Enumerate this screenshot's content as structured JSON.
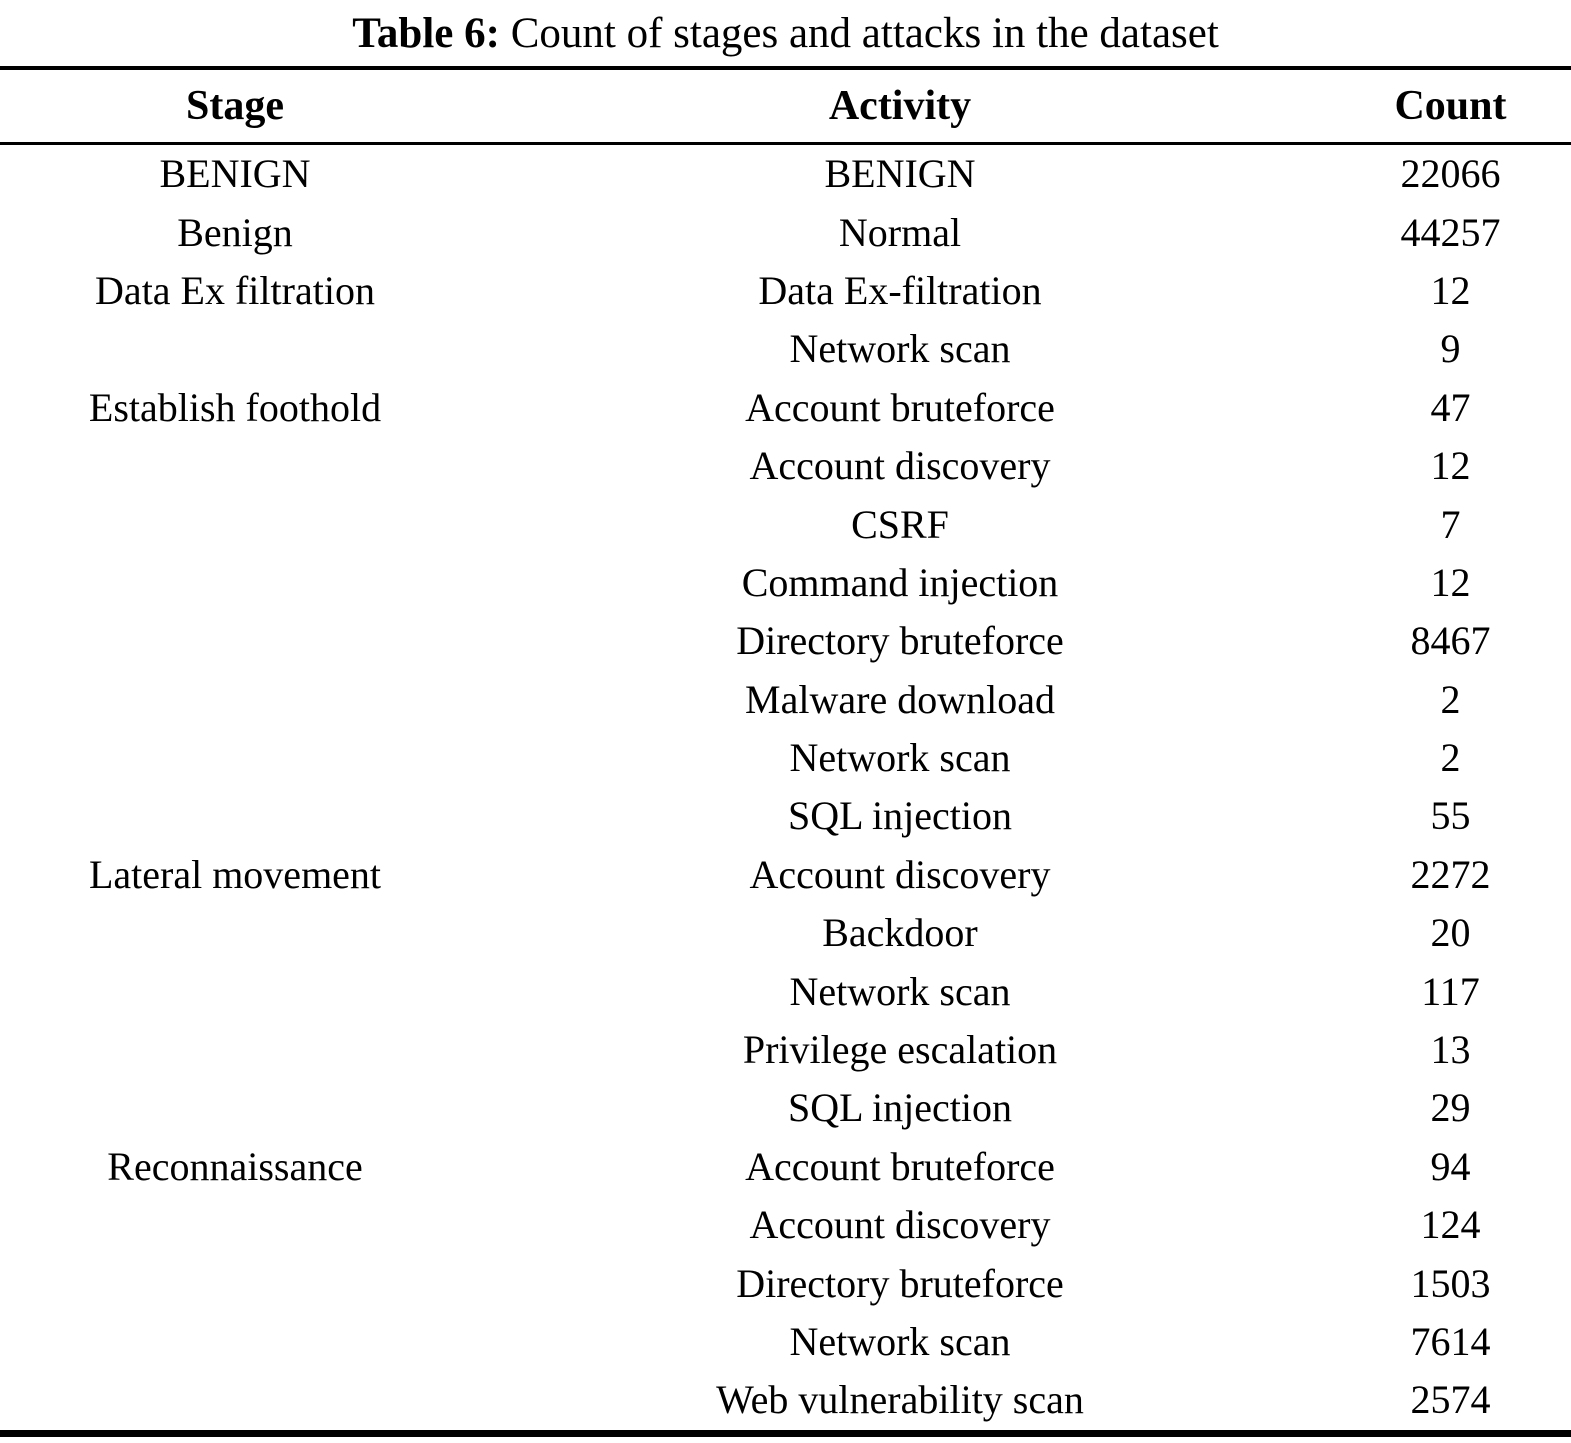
{
  "caption": {
    "label": "Table 6:",
    "text": " Count of stages and attacks in the dataset"
  },
  "table": {
    "columns": [
      "Stage",
      "Activity",
      "Count"
    ],
    "rows": [
      {
        "stage": "BENIGN",
        "activity": "BENIGN",
        "count": "22066"
      },
      {
        "stage": "Benign",
        "activity": "Normal",
        "count": "44257"
      },
      {
        "stage": "Data Ex filtration",
        "activity": "Data Ex-filtration",
        "count": "12"
      },
      {
        "stage": "",
        "activity": "Network scan",
        "count": "9"
      },
      {
        "stage": "Establish foothold",
        "activity": "Account bruteforce",
        "count": "47"
      },
      {
        "stage": "",
        "activity": "Account discovery",
        "count": "12"
      },
      {
        "stage": "",
        "activity": "CSRF",
        "count": "7"
      },
      {
        "stage": "",
        "activity": "Command injection",
        "count": "12"
      },
      {
        "stage": "",
        "activity": "Directory bruteforce",
        "count": "8467"
      },
      {
        "stage": "",
        "activity": "Malware download",
        "count": "2"
      },
      {
        "stage": "",
        "activity": "Network scan",
        "count": "2"
      },
      {
        "stage": "",
        "activity": "SQL injection",
        "count": "55"
      },
      {
        "stage": "Lateral movement",
        "activity": "Account discovery",
        "count": "2272"
      },
      {
        "stage": "",
        "activity": "Backdoor",
        "count": "20"
      },
      {
        "stage": "",
        "activity": "Network scan",
        "count": "117"
      },
      {
        "stage": "",
        "activity": "Privilege escalation",
        "count": "13"
      },
      {
        "stage": "",
        "activity": "SQL injection",
        "count": "29"
      },
      {
        "stage": "Reconnaissance",
        "activity": "Account bruteforce",
        "count": "94"
      },
      {
        "stage": "",
        "activity": "Account discovery",
        "count": "124"
      },
      {
        "stage": "",
        "activity": "Directory bruteforce",
        "count": "1503"
      },
      {
        "stage": "",
        "activity": "Network scan",
        "count": "7614"
      },
      {
        "stage": "",
        "activity": "Web vulnerability scan",
        "count": "2574"
      }
    ]
  }
}
